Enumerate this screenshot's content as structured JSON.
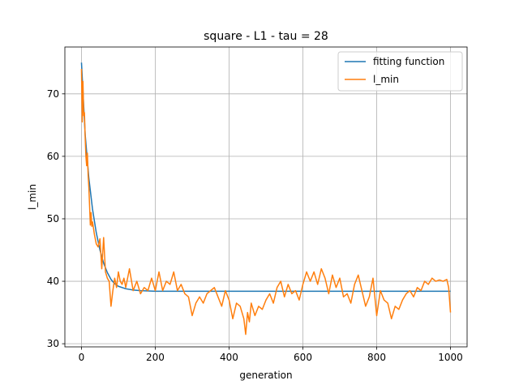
{
  "chart_data": {
    "type": "line",
    "title": "square - L1 - tau = 28",
    "xlabel": "generation",
    "ylabel": "l_min",
    "xlim": [
      -45,
      1045
    ],
    "ylim": [
      29.5,
      77.5
    ],
    "xticks": [
      0,
      200,
      400,
      600,
      800,
      1000
    ],
    "yticks": [
      30,
      40,
      50,
      60,
      70
    ],
    "grid": true,
    "legend_position": "top-right",
    "series": [
      {
        "name": "fitting function",
        "color": "#1f77b4",
        "x": [
          0,
          10,
          20,
          30,
          40,
          50,
          60,
          70,
          80,
          90,
          100,
          120,
          140,
          160,
          180,
          200,
          250,
          300,
          1000
        ],
        "y": [
          75.0,
          63.5,
          56.5,
          51.5,
          47.8,
          45.0,
          42.9,
          41.4,
          40.3,
          39.6,
          39.2,
          38.8,
          38.6,
          38.5,
          38.45,
          38.4,
          38.4,
          38.4,
          38.4
        ]
      },
      {
        "name": "l_min",
        "color": "#ff7f0e",
        "x": [
          0,
          2,
          4,
          6,
          8,
          10,
          12,
          14,
          16,
          18,
          20,
          22,
          24,
          26,
          28,
          30,
          35,
          40,
          45,
          50,
          55,
          60,
          65,
          70,
          75,
          80,
          85,
          90,
          95,
          100,
          105,
          110,
          115,
          120,
          130,
          140,
          150,
          160,
          170,
          180,
          190,
          200,
          210,
          220,
          230,
          240,
          250,
          260,
          270,
          280,
          290,
          300,
          310,
          320,
          330,
          340,
          350,
          360,
          370,
          380,
          390,
          400,
          410,
          420,
          430,
          440,
          445,
          450,
          455,
          460,
          470,
          480,
          490,
          500,
          510,
          520,
          530,
          540,
          550,
          560,
          570,
          580,
          590,
          600,
          610,
          620,
          630,
          640,
          650,
          660,
          670,
          680,
          690,
          700,
          710,
          720,
          730,
          740,
          750,
          760,
          770,
          780,
          790,
          800,
          810,
          820,
          830,
          840,
          850,
          860,
          870,
          880,
          890,
          900,
          910,
          920,
          930,
          940,
          950,
          960,
          970,
          980,
          990,
          995,
          1000
        ],
        "y": [
          74.0,
          65.5,
          72.0,
          66.5,
          67.0,
          63.0,
          60.0,
          58.5,
          60.5,
          57.0,
          55.0,
          52.0,
          49.0,
          51.0,
          48.8,
          49.5,
          47.5,
          46.0,
          45.5,
          46.8,
          42.0,
          47.0,
          41.5,
          40.5,
          40.0,
          36.0,
          38.5,
          40.5,
          39.0,
          41.5,
          40.0,
          39.5,
          40.5,
          39.0,
          42.0,
          38.5,
          40.0,
          38.0,
          39.0,
          38.5,
          40.5,
          38.5,
          41.5,
          38.5,
          40.0,
          39.5,
          41.5,
          38.5,
          39.5,
          38.0,
          37.5,
          34.5,
          36.5,
          37.5,
          36.5,
          38.0,
          38.5,
          39.0,
          37.5,
          36.0,
          38.5,
          37.0,
          34.0,
          36.5,
          36.0,
          34.0,
          31.5,
          35.0,
          33.5,
          36.5,
          34.5,
          36.0,
          35.5,
          37.0,
          38.0,
          36.5,
          39.0,
          40.0,
          37.5,
          39.5,
          38.0,
          38.5,
          37.0,
          39.5,
          41.5,
          40.0,
          41.5,
          39.5,
          42.0,
          40.5,
          38.0,
          41.0,
          39.0,
          40.5,
          37.5,
          38.0,
          36.5,
          39.5,
          41.0,
          38.5,
          36.0,
          37.5,
          40.5,
          34.5,
          38.5,
          37.0,
          36.5,
          34.0,
          36.0,
          35.5,
          37.0,
          38.0,
          38.5,
          37.5,
          39.0,
          38.5,
          40.0,
          39.5,
          40.5,
          40.0,
          40.2,
          40.0,
          40.3,
          39.0,
          35.0
        ]
      }
    ]
  }
}
